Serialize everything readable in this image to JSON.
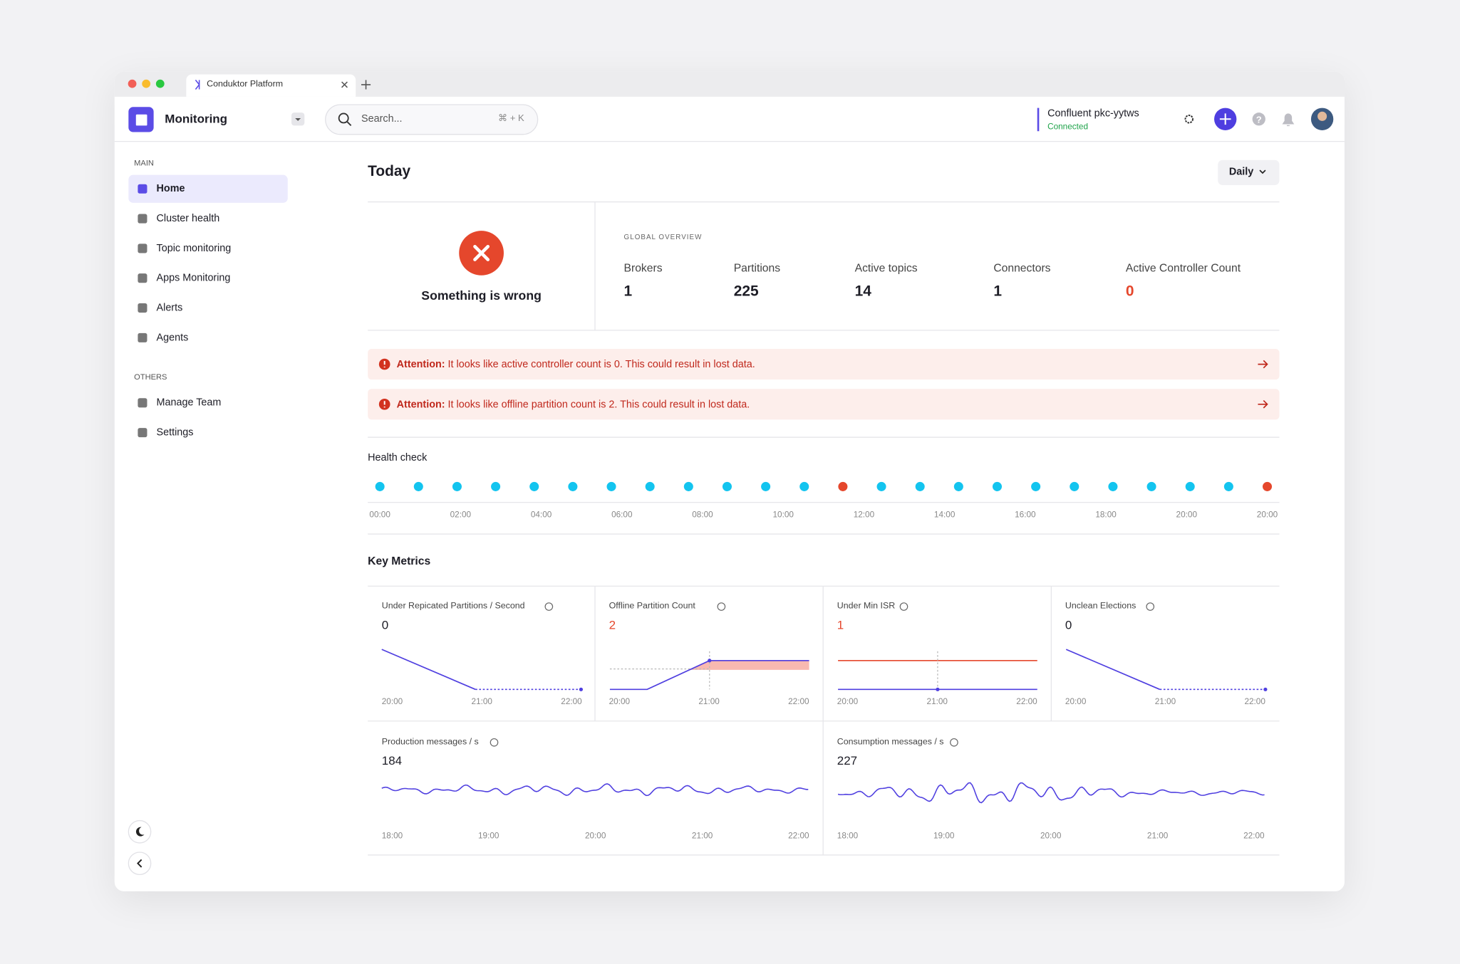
{
  "browser": {
    "tab": "Conduktor Platform"
  },
  "header": {
    "app": "Monitoring",
    "search": "Search...",
    "shortcut": "⌘ + K",
    "cluster": "Confluent pkc-yytws",
    "status": "Connected"
  },
  "sidebar": {
    "sections": [
      {
        "title": "MAIN",
        "items": [
          "Home",
          "Cluster health",
          "Topic monitoring",
          "Apps Monitoring",
          "Alerts",
          "Agents"
        ]
      },
      {
        "title": "OTHERS",
        "items": [
          "Manage Team",
          "Settings"
        ]
      }
    ]
  },
  "main": {
    "title": "Today",
    "period": "Daily",
    "status": "Something is wrong",
    "overview": {
      "title": "GLOBAL OVERVIEW",
      "stats": [
        {
          "label": "Brokers",
          "value": 1
        },
        {
          "label": "Partitions",
          "value": 225
        },
        {
          "label": "Active topics",
          "value": 14
        },
        {
          "label": "Connectors",
          "value": 1
        },
        {
          "label": "Active Controller Count",
          "value": 0,
          "color": "#e5472c"
        }
      ]
    },
    "alerts": [
      {
        "label": "Attention:",
        "text": "It looks like active controller count is 0. This could result in lost data."
      },
      {
        "label": "Attention:",
        "text": "It looks like offline partition count is 2. This could result in lost data."
      }
    ],
    "health_check": {
      "title": "Health check",
      "colors": [
        "#13c4ef",
        "#13c4ef",
        "#13c4ef",
        "#13c4ef",
        "#13c4ef",
        "#13c4ef",
        "#13c4ef",
        "#13c4ef",
        "#13c4ef",
        "#13c4ef",
        "#13c4ef",
        "#13c4ef",
        "#e5472c",
        "#13c4ef",
        "#13c4ef",
        "#13c4ef",
        "#13c4ef",
        "#13c4ef",
        "#13c4ef",
        "#13c4ef",
        "#13c4ef",
        "#13c4ef",
        "#13c4ef",
        "#e5472c"
      ],
      "times": [
        "00:00",
        "02:00",
        "04:00",
        "06:00",
        "08:00",
        "10:00",
        "12:00",
        "14:00",
        "16:00",
        "18:00",
        "20:00",
        "20:00"
      ]
    },
    "key_metrics": {
      "title": "Key Metrics",
      "cards": [
        {
          "title": "Under Repicated Partitions / Second",
          "value": 0,
          "times": [
            "20:00",
            "21:00",
            "22:00"
          ]
        },
        {
          "title": "Offline Partition Count",
          "value": 2,
          "color": "#e5472c",
          "times": [
            "20:00",
            "21:00",
            "22:00"
          ]
        },
        {
          "title": "Under Min ISR",
          "value": 1,
          "color": "#e5472c",
          "times": [
            "20:00",
            "21:00",
            "22:00"
          ]
        },
        {
          "title": "Unclean Elections",
          "value": 0,
          "times": [
            "20:00",
            "21:00",
            "22:00"
          ]
        },
        {
          "title": "Production messages / s",
          "value": 184,
          "times": [
            "18:00",
            "19:00",
            "20:00",
            "21:00",
            "22:00"
          ]
        },
        {
          "title": "Consumption messages / s",
          "value": 227,
          "times": [
            "18:00",
            "19:00",
            "20:00",
            "21:00",
            "22:00"
          ]
        }
      ]
    }
  }
}
